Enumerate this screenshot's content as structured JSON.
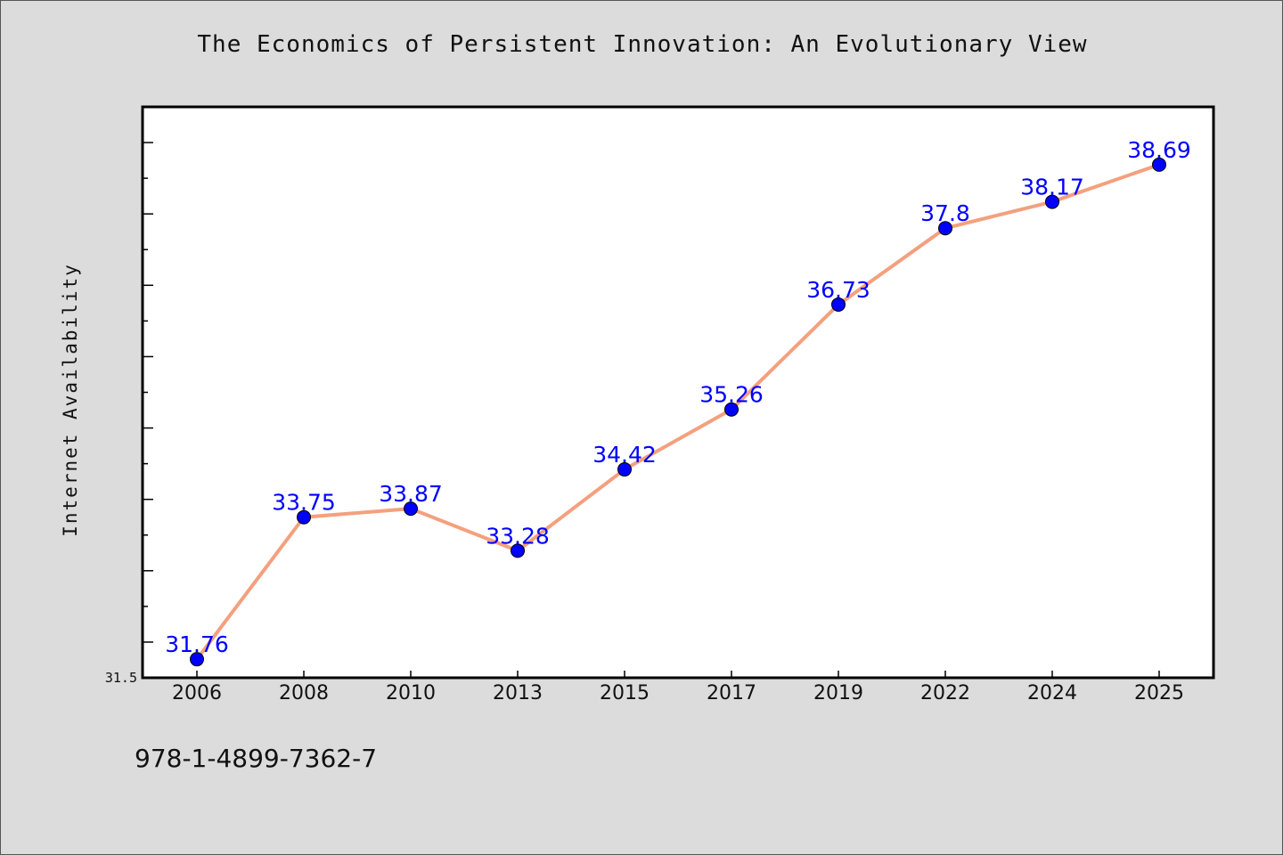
{
  "chart_data": {
    "type": "line",
    "title": "The Economics of Persistent Innovation: An Evolutionary View",
    "xlabel": "",
    "ylabel": "Internet Availability",
    "categories": [
      "2006",
      "2008",
      "2010",
      "2013",
      "2015",
      "2017",
      "2019",
      "2022",
      "2024",
      "2025"
    ],
    "series": [
      {
        "values": [
          31.76,
          33.75,
          33.87,
          33.28,
          34.42,
          35.26,
          36.73,
          37.8,
          38.17,
          38.69
        ],
        "labels": [
          "31.76",
          "33.75",
          "33.87",
          "33.28",
          "34.42",
          "35.26",
          "36.73",
          "37.8",
          "38.17",
          "38.69"
        ]
      }
    ],
    "ylim": [
      31.5,
      39.5
    ],
    "ytick_labels": [
      "31.5"
    ],
    "grid": false,
    "colors": {
      "line": "#f4a07e",
      "marker": "#0000ff",
      "data_label": "#0000ff",
      "background": "#dcdcdc",
      "plot_background": "#ffffff"
    }
  },
  "footer": {
    "isbn": "978-1-4899-7362-7"
  }
}
